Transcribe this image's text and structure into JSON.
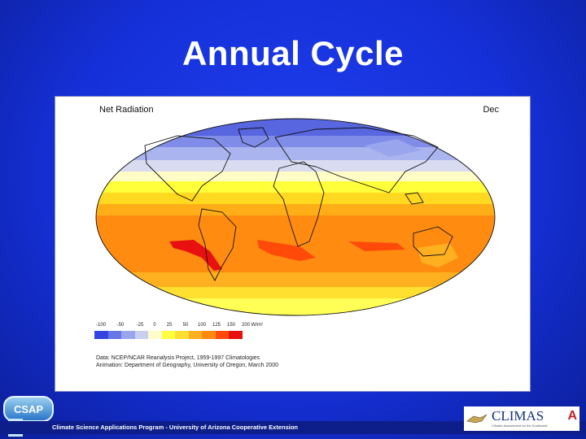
{
  "slide": {
    "title": "Annual Cycle"
  },
  "map": {
    "title": "Net Radiation",
    "month": "Dec",
    "colorbar": {
      "labels": [
        "-100",
        "-50",
        "-25",
        "0",
        "25",
        "50",
        "100",
        "125",
        "150",
        "200 W/m²"
      ],
      "colors": [
        "#3344e0",
        "#6677e6",
        "#99a6ee",
        "#c9cfee",
        "#fffccc",
        "#ffff40",
        "#ffe030",
        "#ffb020",
        "#ff8a10",
        "#ff4a0a",
        "#e80f0f"
      ]
    },
    "credits": [
      "Data: NCEP/NCAR Reanalysis Project, 1959-1997 Climatologies",
      "Animation: Department of Geography, University of Oregon, March 2000"
    ]
  },
  "footer": {
    "text": "Climate Science Applications Program - University of Arizona Cooperative Extension"
  },
  "logos": {
    "csap": "CSAP",
    "climas": "CLIMAS",
    "climas_tagline": "Climate Assessment for the Southwest",
    "arizona": "A"
  }
}
